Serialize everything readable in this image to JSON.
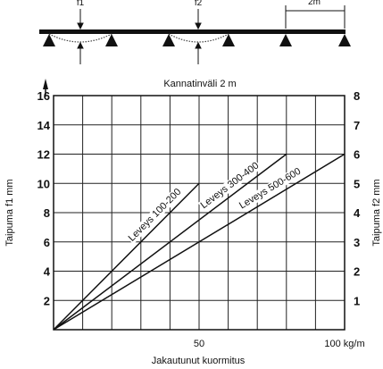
{
  "beam_diagram": {
    "deflection_labels": [
      "f1",
      "f2"
    ],
    "span_label": "2m"
  },
  "chart_data": {
    "type": "line",
    "title": "Kannatinväli 2 m",
    "xlabel": "Jakautunut kuormitus",
    "ylabel_left": "Taipuma f1 mm",
    "ylabel_right": "Taipuma f2 mm",
    "xlim": [
      0,
      100
    ],
    "ylim_left": [
      0,
      16
    ],
    "ylim_right": [
      0,
      8
    ],
    "x_ticks": [
      {
        "value": 50,
        "label": "50"
      },
      {
        "value": 100,
        "label": "100 kg/m"
      }
    ],
    "y_ticks_left": [
      "2",
      "4",
      "6",
      "8",
      "10",
      "12",
      "14",
      "16"
    ],
    "y_ticks_right": [
      "1",
      "2",
      "3",
      "4",
      "5",
      "6",
      "7",
      "8"
    ],
    "grid": true,
    "series": [
      {
        "name": "Leveys 100-200",
        "x": [
          0,
          50
        ],
        "y": [
          0,
          10
        ]
      },
      {
        "name": "Leveys 300-400",
        "x": [
          0,
          80
        ],
        "y": [
          0,
          12
        ]
      },
      {
        "name": "Leveys 500-600",
        "x": [
          0,
          100
        ],
        "y": [
          0,
          12
        ]
      }
    ]
  }
}
